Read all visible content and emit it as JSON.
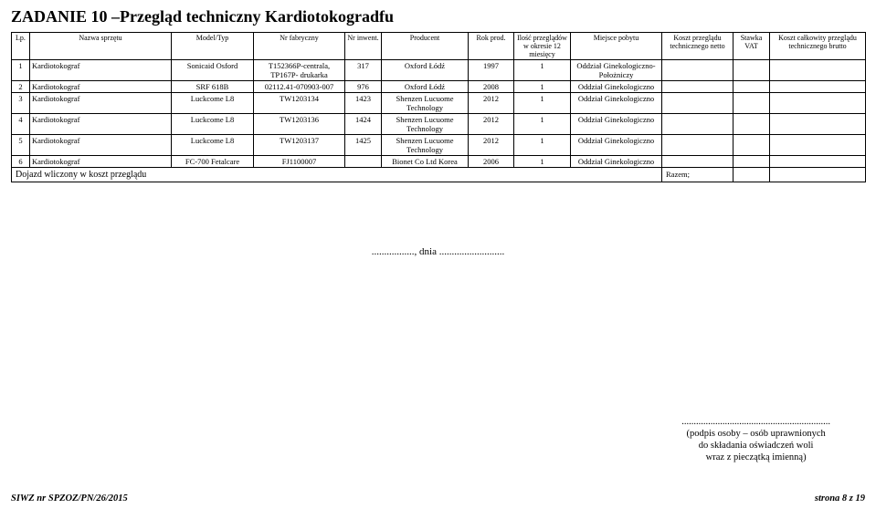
{
  "title": "ZADANIE 10 –Przegląd techniczny Kardiotokogradfu",
  "columns": {
    "lp": "Lp.",
    "nazwa": "Nazwa sprzętu",
    "model": "Model/Typ",
    "nrfab": "Nr fabryczny",
    "nrinw": "Nr inwent.",
    "producent": "Producent",
    "rok": "Rok prod.",
    "ilosc": "Ilość przeglądów w okresie 12 miesięcy",
    "miejsce": "Miejsce pobytu",
    "kosztnetto": "Koszt przeglądu technicznego netto",
    "vat": "Stawka VAT",
    "kosztbrutto": "Koszt całkowity przeglądu technicznego brutto"
  },
  "rows": [
    {
      "lp": "1",
      "nazwa": "Kardiotokograf",
      "model": "Sonicaid Osford",
      "nrfab": "T152366P-centrala, TP167P- drukarka",
      "nrinw": "317",
      "producent": "Oxford Łódź",
      "rok": "1997",
      "ilosc": "1",
      "miejsce": "Oddział Ginekologiczno-Położniczy"
    },
    {
      "lp": "2",
      "nazwa": "Kardiotokograf",
      "model": "SRF 618B",
      "nrfab": "02112.41-070903-007",
      "nrinw": "976",
      "producent": "Oxford Łódź",
      "rok": "2008",
      "ilosc": "1",
      "miejsce": "Oddział Ginekologiczno"
    },
    {
      "lp": "3",
      "nazwa": "Kardiotokograf",
      "model": "Luckcome L8",
      "nrfab": "TW1203134",
      "nrinw": "1423",
      "producent": "Shenzen Lucuome Technology",
      "rok": "2012",
      "ilosc": "1",
      "miejsce": "Oddział Ginekologiczno"
    },
    {
      "lp": "4",
      "nazwa": "Kardiotokograf",
      "model": "Luckcome L8",
      "nrfab": "TW1203136",
      "nrinw": "1424",
      "producent": "Shenzen Lucuome Technology",
      "rok": "2012",
      "ilosc": "1",
      "miejsce": "Oddział Ginekologiczno"
    },
    {
      "lp": "5",
      "nazwa": "Kardiotokograf",
      "model": "Luckcome L8",
      "nrfab": "TW1203137",
      "nrinw": "1425",
      "producent": "Shenzen Lucuome Technology",
      "rok": "2012",
      "ilosc": "1",
      "miejsce": "Oddział Ginekologiczno"
    },
    {
      "lp": "6",
      "nazwa": "Kardiotokograf",
      "model": "FC-700 Fetalcare",
      "nrfab": "FJ1100007",
      "nrinw": "",
      "producent": "Bionet Co Ltd Korea",
      "rok": "2006",
      "ilosc": "1",
      "miejsce": "Oddział Ginekologiczno"
    }
  ],
  "dojazd": "Dojazd wliczony w koszt przeglądu",
  "razem": "Razem;",
  "date_line": "................., dnia ..........................",
  "sign": {
    "dots": "..............................................................",
    "l1": "(podpis osoby – osób uprawnionych",
    "l2": "do składania oświadczeń woli",
    "l3": "wraz z pieczątką imienną)"
  },
  "footer": {
    "left": "SIWZ nr SPZOZ/PN/26/2015",
    "right": "strona  8 z 19"
  },
  "col_widths": {
    "lp": "20px",
    "nazwa": "155px",
    "model": "90px",
    "nrfab": "100px",
    "nrinw": "40px",
    "producent": "95px",
    "rok": "50px",
    "ilosc": "62px",
    "miejsce": "100px",
    "kosztnetto": "78px",
    "vat": "40px",
    "kosztbrutto": "105px"
  }
}
